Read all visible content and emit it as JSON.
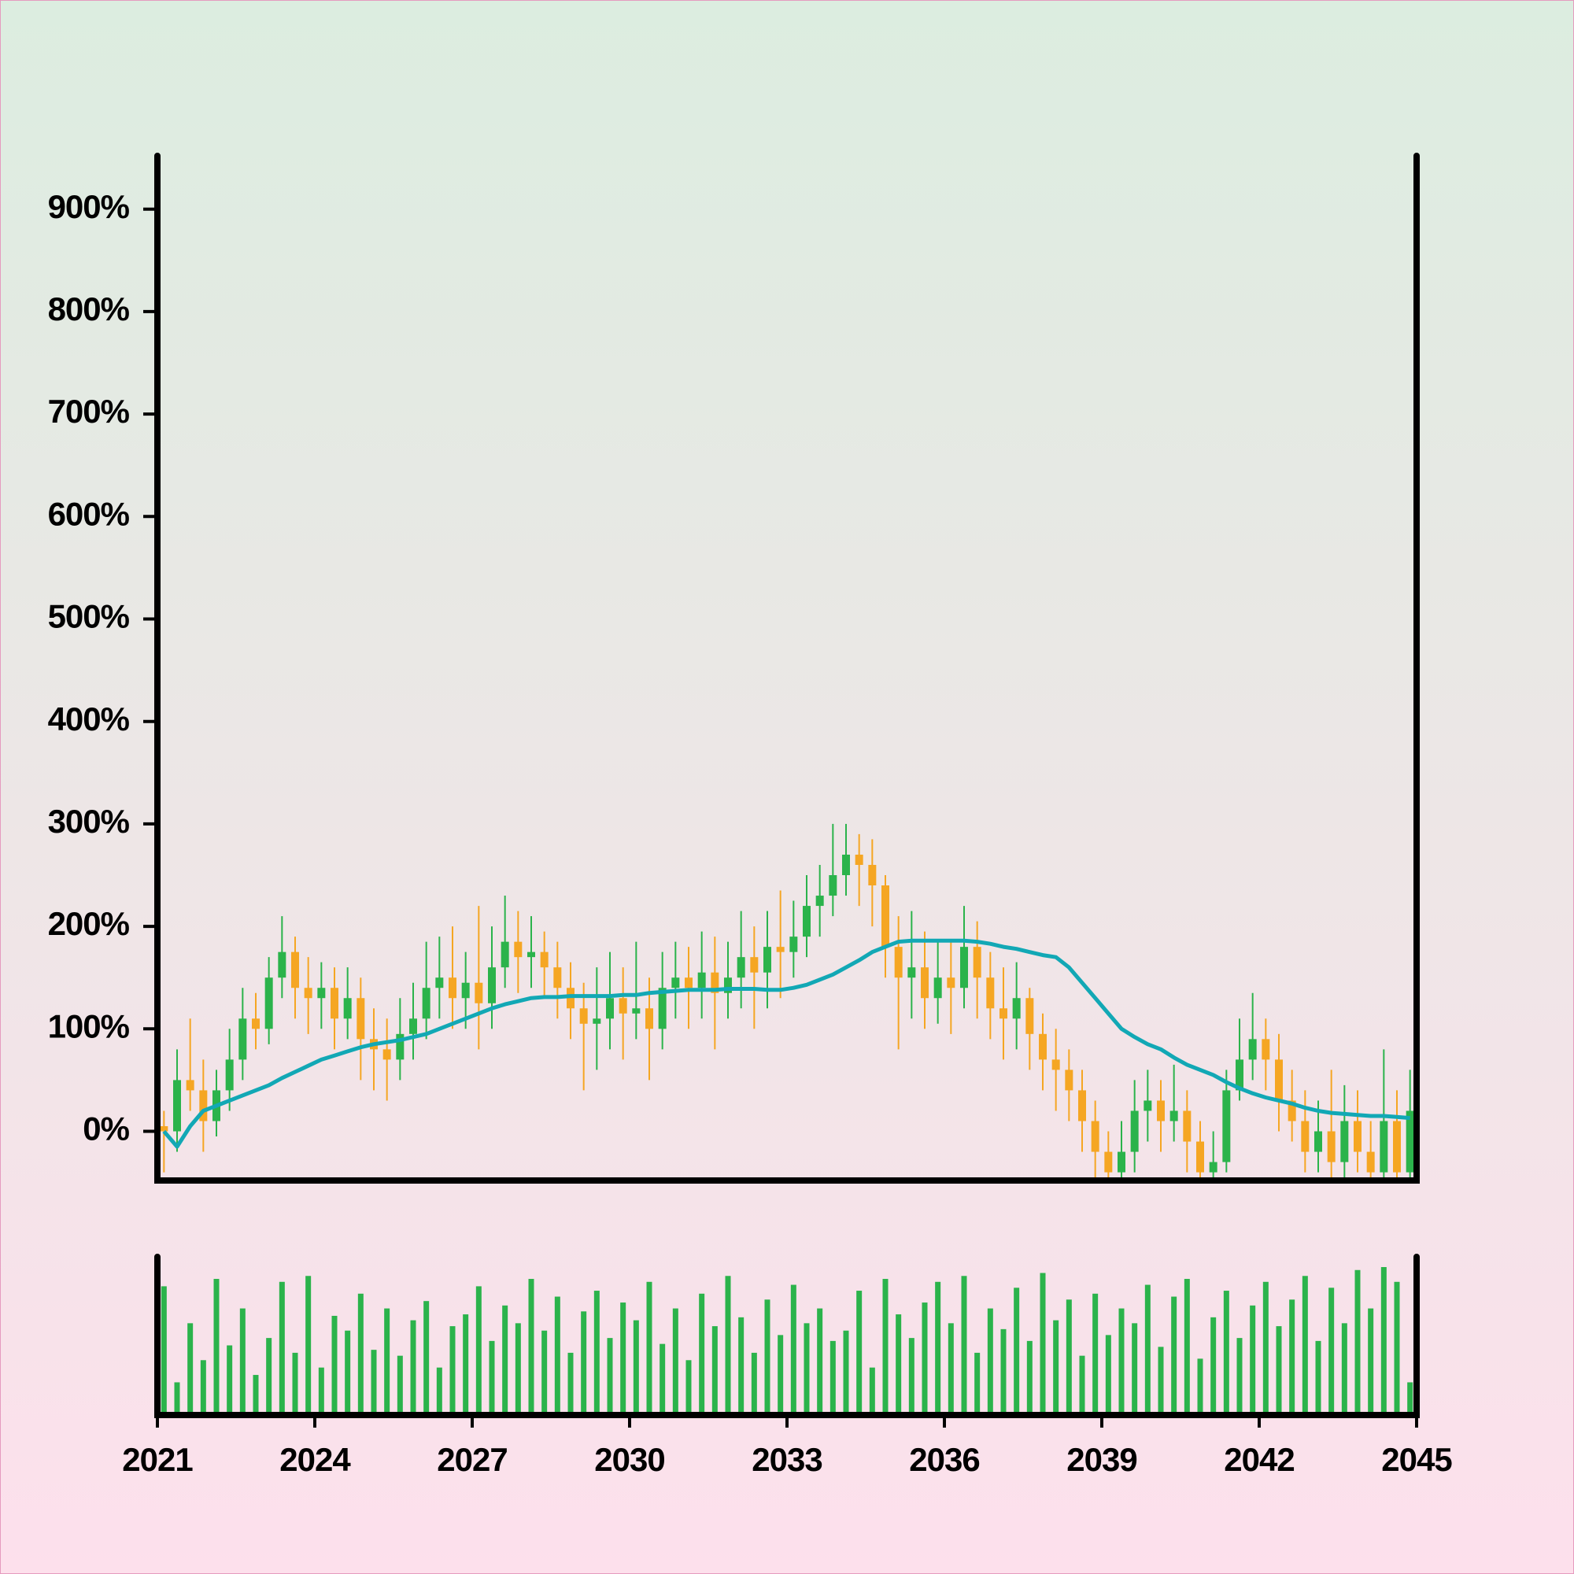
{
  "chart_data": {
    "type": "candlestick",
    "x": [
      2021,
      2021.25,
      2021.5,
      2021.75,
      2022,
      2022.25,
      2022.5,
      2022.75,
      2023,
      2023.25,
      2023.5,
      2023.75,
      2024,
      2024.25,
      2024.5,
      2024.75,
      2025,
      2025.25,
      2025.5,
      2025.75,
      2026,
      2026.25,
      2026.5,
      2026.75,
      2027,
      2027.25,
      2027.5,
      2027.75,
      2028,
      2028.25,
      2028.5,
      2028.75,
      2029,
      2029.25,
      2029.5,
      2029.75,
      2030,
      2030.25,
      2030.5,
      2030.75,
      2031,
      2031.25,
      2031.5,
      2031.75,
      2032,
      2032.25,
      2032.5,
      2032.75,
      2033,
      2033.25,
      2033.5,
      2033.75,
      2034,
      2034.25,
      2034.5,
      2034.75,
      2035,
      2035.25,
      2035.5,
      2035.75,
      2036,
      2036.25,
      2036.5,
      2036.75,
      2037,
      2037.25,
      2037.5,
      2037.75,
      2038,
      2038.25,
      2038.5,
      2038.75,
      2039,
      2039.25,
      2039.5,
      2039.75,
      2040,
      2040.25,
      2040.5,
      2040.75,
      2041,
      2041.25,
      2041.5,
      2041.75,
      2042,
      2042.25,
      2042.5,
      2042.75,
      2043,
      2043.25,
      2043.5,
      2043.75,
      2044,
      2044.25,
      2044.5,
      2044.75
    ],
    "open": [
      5,
      0,
      50,
      40,
      10,
      40,
      70,
      110,
      100,
      150,
      175,
      140,
      130,
      140,
      110,
      130,
      90,
      80,
      70,
      95,
      110,
      140,
      150,
      130,
      145,
      125,
      160,
      185,
      170,
      175,
      160,
      140,
      120,
      105,
      110,
      130,
      115,
      120,
      100,
      140,
      150,
      140,
      155,
      135,
      150,
      170,
      155,
      180,
      175,
      190,
      220,
      230,
      250,
      270,
      260,
      240,
      180,
      150,
      160,
      130,
      150,
      140,
      180,
      150,
      120,
      110,
      130,
      95,
      70,
      60,
      40,
      10,
      -20,
      -40,
      -20,
      20,
      30,
      10,
      20,
      -10,
      -40,
      -30,
      40,
      70,
      90,
      70,
      30,
      10,
      -20,
      0,
      -30,
      10,
      -20,
      -40,
      10,
      -40
    ],
    "high": [
      20,
      80,
      110,
      70,
      60,
      100,
      140,
      135,
      170,
      210,
      190,
      170,
      165,
      160,
      160,
      150,
      120,
      110,
      130,
      145,
      185,
      190,
      200,
      175,
      220,
      200,
      230,
      215,
      210,
      195,
      185,
      165,
      145,
      160,
      175,
      160,
      185,
      150,
      175,
      185,
      180,
      195,
      190,
      185,
      215,
      200,
      215,
      235,
      225,
      250,
      260,
      300,
      300,
      290,
      285,
      250,
      210,
      215,
      195,
      185,
      185,
      220,
      205,
      175,
      160,
      165,
      140,
      115,
      100,
      80,
      60,
      30,
      0,
      10,
      50,
      60,
      50,
      65,
      40,
      10,
      0,
      60,
      110,
      135,
      110,
      95,
      60,
      40,
      30,
      60,
      45,
      40,
      10,
      80,
      40,
      60
    ],
    "low": [
      -40,
      -20,
      20,
      -20,
      -5,
      20,
      50,
      80,
      85,
      130,
      110,
      95,
      100,
      80,
      90,
      50,
      40,
      30,
      50,
      70,
      90,
      110,
      100,
      100,
      80,
      100,
      140,
      135,
      140,
      130,
      110,
      90,
      40,
      60,
      80,
      70,
      90,
      50,
      80,
      110,
      100,
      110,
      80,
      110,
      120,
      100,
      120,
      130,
      150,
      170,
      190,
      210,
      230,
      220,
      200,
      150,
      80,
      110,
      100,
      105,
      95,
      120,
      110,
      90,
      70,
      80,
      60,
      40,
      20,
      10,
      -20,
      -50,
      -60,
      -55,
      -40,
      -10,
      -20,
      -10,
      -40,
      -60,
      -60,
      -40,
      30,
      50,
      40,
      0,
      -10,
      -40,
      -40,
      -50,
      -50,
      -40,
      -60,
      -55,
      -60,
      -50
    ],
    "close": [
      0,
      50,
      40,
      10,
      40,
      70,
      110,
      100,
      150,
      175,
      140,
      130,
      140,
      110,
      130,
      90,
      80,
      70,
      95,
      110,
      140,
      150,
      130,
      145,
      125,
      160,
      185,
      170,
      175,
      160,
      140,
      120,
      105,
      110,
      130,
      115,
      120,
      100,
      140,
      150,
      140,
      155,
      135,
      150,
      170,
      155,
      180,
      175,
      190,
      220,
      230,
      250,
      270,
      260,
      240,
      180,
      150,
      160,
      130,
      150,
      140,
      180,
      150,
      120,
      110,
      130,
      95,
      70,
      60,
      40,
      10,
      -20,
      -40,
      -20,
      20,
      30,
      10,
      20,
      -10,
      -40,
      -30,
      40,
      70,
      90,
      70,
      30,
      10,
      -20,
      0,
      -30,
      10,
      -20,
      -40,
      10,
      -40,
      20
    ],
    "volume": [
      85,
      20,
      60,
      35,
      90,
      45,
      70,
      25,
      50,
      88,
      40,
      92,
      30,
      65,
      55,
      80,
      42,
      70,
      38,
      62,
      75,
      30,
      58,
      66,
      85,
      48,
      72,
      60,
      90,
      55,
      78,
      40,
      68,
      82,
      50,
      74,
      62,
      88,
      46,
      70,
      35,
      80,
      58,
      92,
      64,
      40,
      76,
      52,
      86,
      60,
      70,
      48,
      55,
      82,
      30,
      90,
      66,
      50,
      74,
      88,
      60,
      92,
      40,
      70,
      56,
      84,
      48,
      94,
      62,
      76,
      38,
      80,
      52,
      70,
      60,
      86,
      44,
      78,
      90,
      36,
      64,
      82,
      50,
      72,
      88,
      58,
      76,
      92,
      48,
      84,
      60,
      96,
      70,
      98,
      88,
      20
    ],
    "volume_color": "#2bb34b",
    "ma_values": [
      0,
      -15,
      5,
      20,
      25,
      30,
      35,
      40,
      45,
      52,
      58,
      64,
      70,
      74,
      78,
      82,
      85,
      87,
      89,
      92,
      95,
      100,
      105,
      110,
      115,
      120,
      124,
      127,
      130,
      131,
      131,
      132,
      132,
      132,
      132,
      133,
      133,
      135,
      136,
      137,
      138,
      138,
      138,
      139,
      139,
      139,
      138,
      138,
      140,
      143,
      148,
      153,
      160,
      167,
      175,
      180,
      185,
      186,
      186,
      186,
      186,
      186,
      185,
      183,
      180,
      178,
      175,
      172,
      170,
      160,
      145,
      130,
      115,
      100,
      92,
      85,
      80,
      72,
      65,
      60,
      55,
      48,
      42,
      37,
      33,
      30,
      27,
      23,
      20,
      18,
      17,
      16,
      15,
      15,
      14,
      13
    ],
    "ma_color": "#12a8b5",
    "up_color": "#2bb34b",
    "down_color": "#f5a623",
    "ylim": [
      -48,
      952
    ],
    "yticks": [
      {
        "value": 0,
        "label": "0%"
      },
      {
        "value": 100,
        "label": "100%"
      },
      {
        "value": 200,
        "label": "200%"
      },
      {
        "value": 300,
        "label": "300%"
      },
      {
        "value": 400,
        "label": "400%"
      },
      {
        "value": 500,
        "label": "500%"
      },
      {
        "value": 600,
        "label": "600%"
      },
      {
        "value": 700,
        "label": "700%"
      },
      {
        "value": 800,
        "label": "800%"
      },
      {
        "value": 900,
        "label": "900%"
      }
    ],
    "xlim": [
      2021,
      2045
    ],
    "xticks": [
      2021,
      2024,
      2027,
      2030,
      2033,
      2036,
      2039,
      2042,
      2045
    ]
  }
}
